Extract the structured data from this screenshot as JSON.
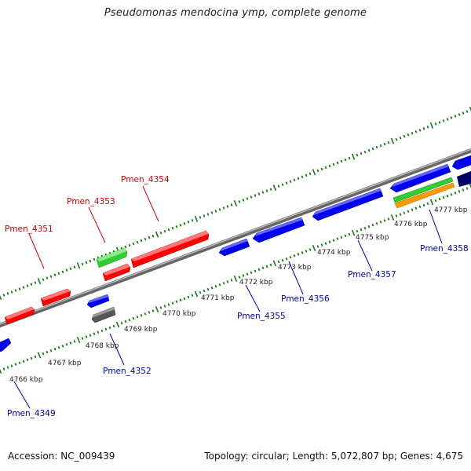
{
  "title": "Pseudomonas mendocina ymp, complete genome",
  "footer": {
    "accession": "Accession: NC_009439",
    "stats": "Topology: circular; Length: 5,072,807 bp; Genes: 4,675"
  },
  "scale_labels": [
    "4766 kbp",
    "4767 kbp",
    "4768 kbp",
    "4769 kbp",
    "4770 kbp",
    "4771 kbp",
    "4772 kbp",
    "4773 kbp",
    "4774 kbp",
    "4775 kbp",
    "4776 kbp",
    "4777 kbp"
  ],
  "gene_labels": {
    "forward": [
      "Pmen_4351",
      "Pmen_4353",
      "Pmen_4354"
    ],
    "reverse": [
      "Pmen_4349",
      "Pmen_4352",
      "Pmen_4355",
      "Pmen_4356",
      "Pmen_4357",
      "Pmen_4358"
    ]
  },
  "colors": {
    "forward_label": "#cc0000",
    "reverse_label": "#0000aa",
    "red_gene": "#ff0000",
    "blue_gene": "#0000ee",
    "green_gene": "#33cc33",
    "grey_gene": "#555555",
    "orange_gene": "#ff9900",
    "navy_gene": "#000066",
    "tick": "#1a7a1a",
    "backbone": "#888888"
  }
}
